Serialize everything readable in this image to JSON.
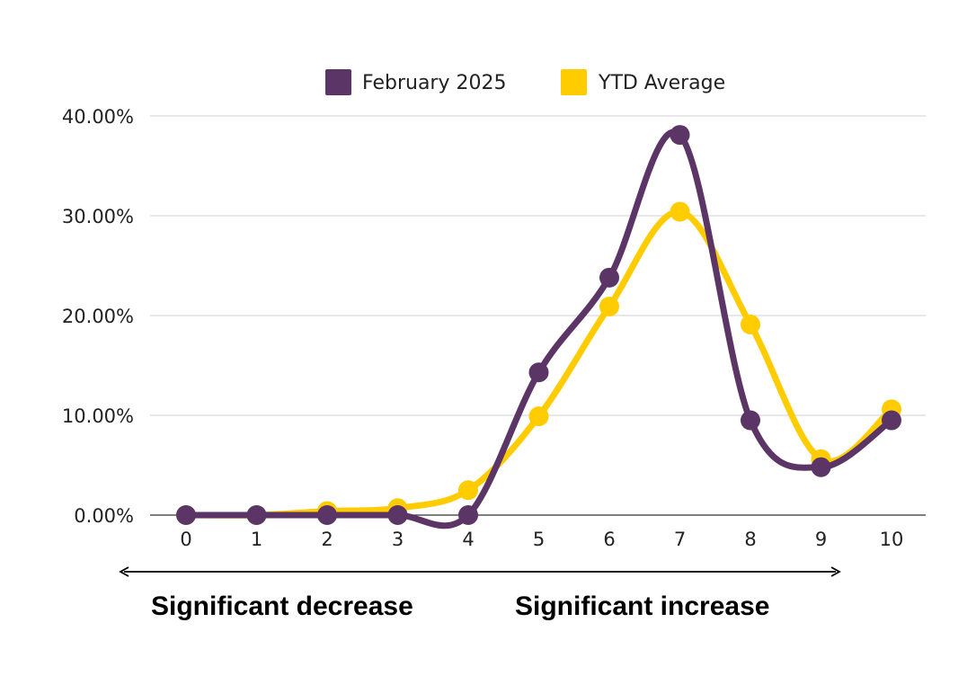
{
  "chart_data": {
    "type": "line",
    "smooth": true,
    "categories": [
      "0",
      "1",
      "2",
      "3",
      "4",
      "5",
      "6",
      "7",
      "8",
      "9",
      "10"
    ],
    "series": [
      {
        "name": "February 2025",
        "color": "#5B3566",
        "values": [
          0,
          0,
          0,
          0,
          0,
          14.3,
          23.8,
          38.1,
          9.5,
          4.8,
          9.5
        ]
      },
      {
        "name": "YTD Average",
        "color": "#FFCC00",
        "values": [
          0,
          0,
          0.4,
          0.7,
          2.5,
          9.9,
          20.9,
          30.4,
          19.1,
          5.6,
          10.6
        ]
      }
    ],
    "y_ticks": [
      "0.00%",
      "10.00%",
      "20.00%",
      "30.00%",
      "40.00%"
    ],
    "ylim": [
      0,
      40
    ],
    "grid": true,
    "legend_position": "top",
    "annotations": {
      "left": "Significant decrease",
      "right": "Significant increase",
      "arrow": "double-headed"
    }
  }
}
